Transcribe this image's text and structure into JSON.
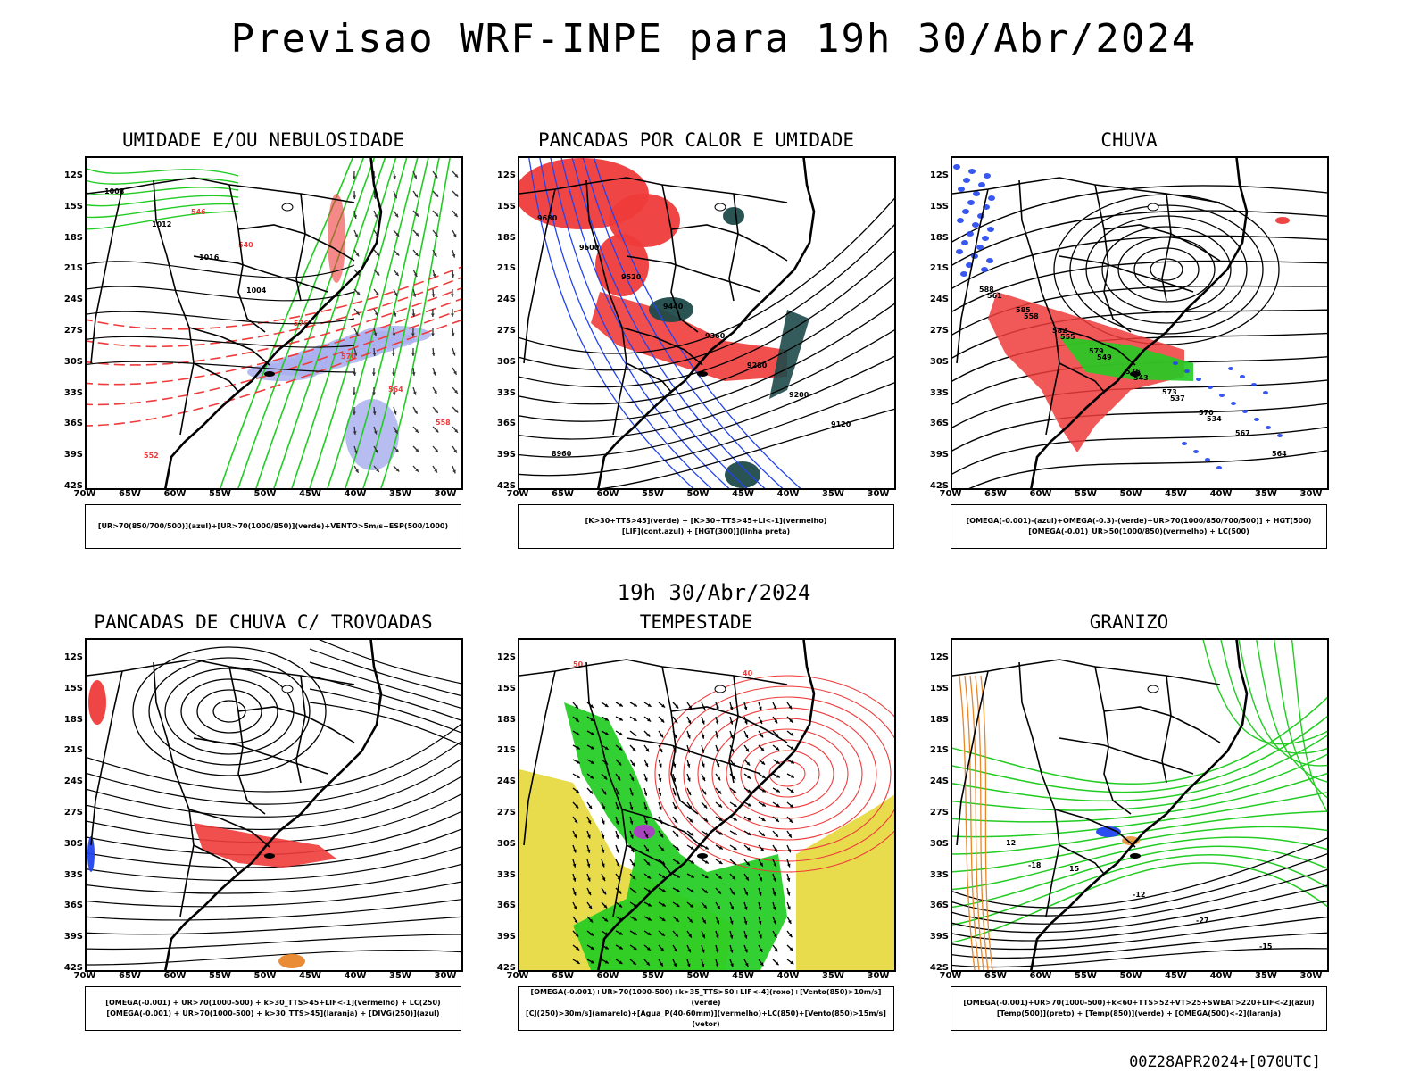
{
  "header": {
    "title": "Previsao WRF-INPE  para 19h 30/Abr/2024",
    "middle_date": "19h 30/Abr/2024",
    "footer": "00Z28APR2024+[070UTC]"
  },
  "axes": {
    "lat_labels": [
      "12S",
      "15S",
      "18S",
      "21S",
      "24S",
      "27S",
      "30S",
      "33S",
      "36S",
      "39S",
      "42S"
    ],
    "lon_labels": [
      "70W",
      "65W",
      "60W",
      "55W",
      "50W",
      "45W",
      "40W",
      "35W",
      "30W"
    ]
  },
  "colors": {
    "red": "#ef3b3b",
    "green": "#22cc22",
    "blue": "#2244ee",
    "lavender": "#aab0ee",
    "dark_teal": "#1f4a4a",
    "yellow": "#e6d83a",
    "purple": "#b03cc8",
    "orange": "#e8862a",
    "black": "#000000"
  },
  "panels": [
    {
      "id": "umidade",
      "title": "UMIDADE E/OU NEBULOSIDADE",
      "legend": [
        "[UR>70(850/700/500)](azul)+[UR>70(1000/850)](verde)+VENTO>5m/s+ESP(500/1000)"
      ],
      "contour_labels": [
        "1008",
        "1012",
        "1016",
        "1004",
        "576",
        "570",
        "564",
        "558",
        "552",
        "546",
        "540"
      ]
    },
    {
      "id": "pancadas-calor",
      "title": "PANCADAS POR CALOR E UMIDADE",
      "legend": [
        "[K>30+TTS>45](verde) + [K>30+TTS>45+LI<-1](vermelho)",
        "[LIF](cont.azul) + [HGT(300)](linha preta)"
      ],
      "contour_labels": [
        "9680",
        "9600",
        "9520",
        "9440",
        "9360",
        "9280",
        "9200",
        "9120",
        "8960"
      ]
    },
    {
      "id": "chuva",
      "title": "CHUVA",
      "legend": [
        "[OMEGA(-0.001)-(azul)+OMEGA(-0.3)-(verde)+UR>70(1000/850/700/500)] + HGT(500)",
        "[OMEGA(-0.01)_UR>50(1000/850)(vermelho) + LC(500)"
      ],
      "contour_labels": [
        "588",
        "585",
        "582",
        "579",
        "576",
        "573",
        "570",
        "567",
        "564",
        "561",
        "558",
        "555",
        "549",
        "543",
        "537",
        "534"
      ]
    },
    {
      "id": "pancadas-trovoadas",
      "title": "PANCADAS DE CHUVA C/ TROVOADAS",
      "legend": [
        "[OMEGA(-0.001) + UR>70(1000-500) + k>30_TTS>45+LIF<-1](vermelho) + LC(250)",
        "[OMEGA(-0.001) + UR>70(1000-500) + k>30_TTS>45](laranja) + [DIVG(250)](azul)"
      ],
      "contour_labels": []
    },
    {
      "id": "tempestade",
      "title": "TEMPESTADE",
      "legend": [
        "[OMEGA(-0.001)+UR>70(1000-500)+k>35_TTS>50+LIF<-4](roxo)+[Vento(850)>10m/s](verde)",
        "[CJ(250)>30m/s](amarelo)+[Agua_P(40-60mm)](vermelho)+LC(850)+[Vento(850)>15m/s](vetor)"
      ],
      "contour_labels": [
        "50",
        "40"
      ]
    },
    {
      "id": "granizo",
      "title": "GRANIZO",
      "legend": [
        "[OMEGA(-0.001)+UR>70(1000-500)+k<60+TTS>52+VT>25+SWEAT>220+LIF<-2](azul)",
        "[Temp(500)](preto) + [Temp(850)](verde) + [OMEGA(500)<-2](laranja)"
      ],
      "contour_labels": [
        "12",
        "15",
        "-12",
        "-27",
        "-15",
        "-18"
      ]
    }
  ]
}
